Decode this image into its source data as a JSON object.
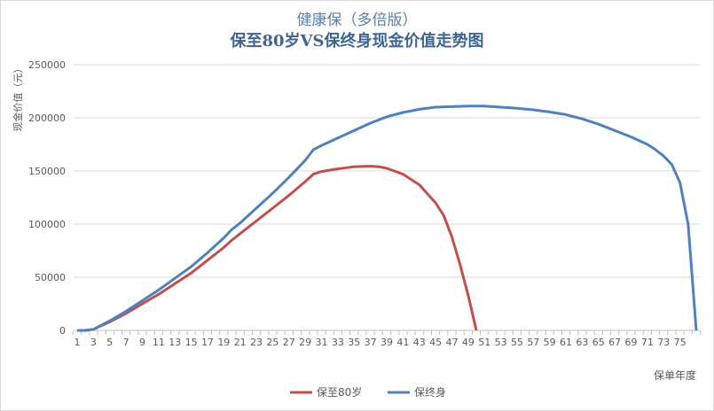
{
  "chart_data": {
    "type": "line",
    "title": "健康保（多倍版）",
    "subtitle": "保至80岁VS保终身现金价值走势图",
    "xlabel": "保单年度",
    "ylabel": "现金价值（元）",
    "x_range": [
      1,
      77
    ],
    "x_tick_labels": [
      1,
      3,
      5,
      7,
      9,
      11,
      13,
      15,
      17,
      19,
      21,
      23,
      25,
      27,
      29,
      31,
      33,
      35,
      37,
      39,
      41,
      43,
      45,
      47,
      49,
      51,
      53,
      55,
      57,
      59,
      61,
      63,
      65,
      67,
      69,
      71,
      73,
      75
    ],
    "ylim": [
      0,
      250000
    ],
    "y_ticks": [
      0,
      50000,
      100000,
      150000,
      200000,
      250000
    ],
    "grid": "horizontal",
    "legend": "bottom",
    "series": [
      {
        "name": "保至80岁",
        "color": "#c0504d",
        "x": [
          1,
          2,
          3,
          5,
          7,
          9,
          11,
          13,
          15,
          17,
          19,
          20,
          21,
          23,
          25,
          27,
          29,
          30,
          31,
          33,
          35,
          37,
          38,
          39,
          41,
          43,
          45,
          46,
          47,
          48,
          49,
          50
        ],
        "y": [
          0,
          0,
          1000,
          8000,
          16000,
          25000,
          34000,
          44000,
          54000,
          66000,
          78000,
          85000,
          91000,
          103000,
          115000,
          127000,
          140000,
          147000,
          149500,
          152000,
          154000,
          154500,
          154000,
          152500,
          147000,
          137000,
          120000,
          108000,
          88000,
          62000,
          33000,
          0
        ]
      },
      {
        "name": "保终身",
        "color": "#4f81bd",
        "x": [
          1,
          2,
          3,
          5,
          7,
          9,
          11,
          13,
          15,
          17,
          19,
          20,
          21,
          23,
          25,
          27,
          29,
          30,
          31,
          33,
          35,
          37,
          39,
          41,
          43,
          45,
          47,
          49,
          51,
          53,
          55,
          57,
          59,
          61,
          63,
          65,
          67,
          69,
          71,
          72,
          73,
          74,
          75,
          76,
          77
        ],
        "y": [
          0,
          0,
          1000,
          9000,
          18000,
          28000,
          38000,
          49000,
          60000,
          73000,
          87000,
          95000,
          101000,
          115000,
          129000,
          144000,
          160000,
          170000,
          174000,
          181000,
          188000,
          195000,
          201000,
          205000,
          208000,
          210000,
          210500,
          211000,
          211000,
          210000,
          209000,
          207500,
          205500,
          203000,
          199000,
          194000,
          188000,
          182000,
          175000,
          170000,
          164000,
          156000,
          139000,
          100000,
          0
        ]
      }
    ]
  }
}
